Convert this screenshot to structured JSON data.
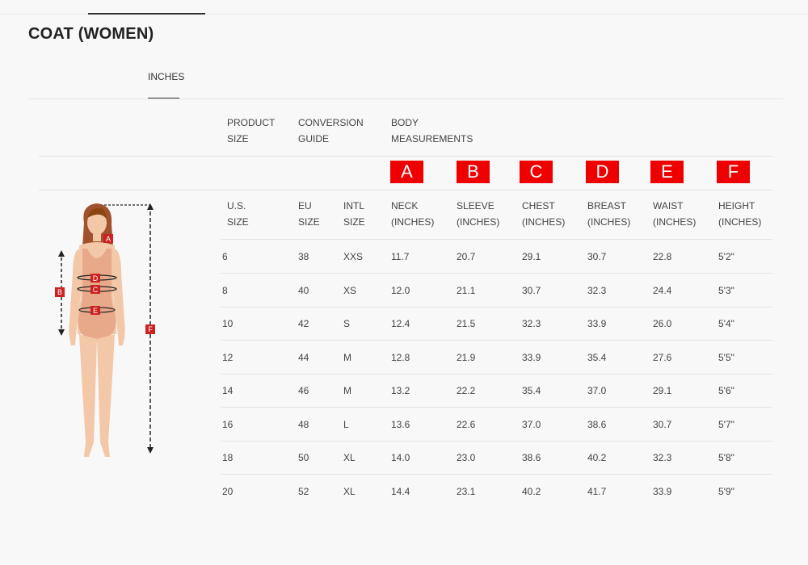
{
  "page": {
    "title": "COAT (WOMEN)"
  },
  "unit_tab": {
    "label": "INCHES"
  },
  "headers": {
    "product_size": [
      "PRODUCT",
      "SIZE"
    ],
    "conversion_guide": [
      "CONVERSION",
      "GUIDE"
    ],
    "body_measurements": [
      "BODY",
      "MEASUREMENTS"
    ]
  },
  "badges": [
    "A",
    "B",
    "C",
    "D",
    "E",
    "F"
  ],
  "badge_color": "#ee0000",
  "columns": [
    [
      "U.S.",
      "SIZE"
    ],
    [
      "EU",
      "SIZE"
    ],
    [
      "INTL",
      "SIZE"
    ],
    [
      "NECK",
      "(INCHES)"
    ],
    [
      "SLEEVE",
      "(INCHES)"
    ],
    [
      "CHEST",
      "(INCHES)"
    ],
    [
      "BREAST",
      "(INCHES)"
    ],
    [
      "WAIST",
      "(INCHES)"
    ],
    [
      "HEIGHT",
      "(INCHES)"
    ]
  ],
  "rows": [
    [
      "6",
      "38",
      "XXS",
      "11.7",
      "20.7",
      "29.1",
      "30.7",
      "22.8",
      "5'2\""
    ],
    [
      "8",
      "40",
      "XS",
      "12.0",
      "21.1",
      "30.7",
      "32.3",
      "24.4",
      "5'3\""
    ],
    [
      "10",
      "42",
      "S",
      "12.4",
      "21.5",
      "32.3",
      "33.9",
      "26.0",
      "5'4\""
    ],
    [
      "12",
      "44",
      "M",
      "12.8",
      "21.9",
      "33.9",
      "35.4",
      "27.6",
      "5'5\""
    ],
    [
      "14",
      "46",
      "M",
      "13.2",
      "22.2",
      "35.4",
      "37.0",
      "29.1",
      "5'6\""
    ],
    [
      "16",
      "48",
      "L",
      "13.6",
      "22.6",
      "37.0",
      "38.6",
      "30.7",
      "5'7\""
    ],
    [
      "18",
      "50",
      "XL",
      "14.0",
      "23.0",
      "38.6",
      "40.2",
      "32.3",
      "5'8\""
    ],
    [
      "20",
      "52",
      "XL",
      "14.4",
      "23.1",
      "40.2",
      "41.7",
      "33.9",
      "5'9\""
    ]
  ],
  "figure": {
    "icon": "woman-body-measurement-icon",
    "markers": [
      "A",
      "B",
      "C",
      "D",
      "E",
      "F"
    ],
    "skin_color": "#f2c8a8",
    "swimsuit_color": "#e8a88a",
    "hair_color": "#a0522d",
    "marker_color": "#cc2222"
  }
}
